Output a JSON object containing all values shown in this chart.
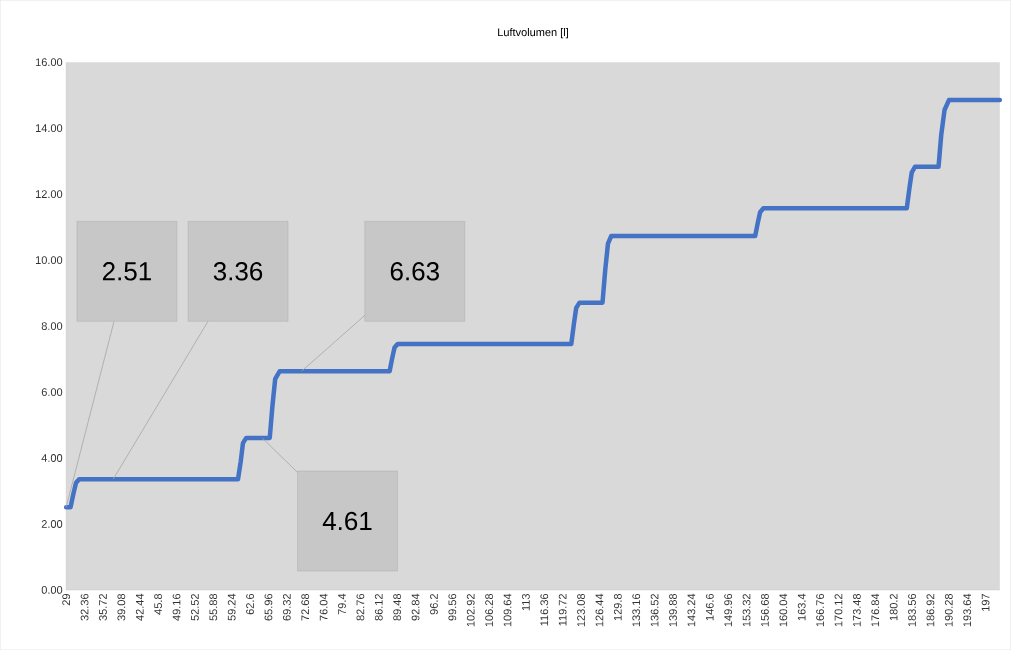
{
  "chart_data": {
    "type": "line",
    "title": "Luftvolumen [l]",
    "x": [
      29,
      29.8,
      30.3,
      30.8,
      31.4,
      60.4,
      60.9,
      61.3,
      61.9,
      66.2,
      66.7,
      67.2,
      68.0,
      88.1,
      88.6,
      89.0,
      89.6,
      121.3,
      121.8,
      122.2,
      122.8,
      127.0,
      127.5,
      128.0,
      128.6,
      154.9,
      155.4,
      155.8,
      156.4,
      182.6,
      183.1,
      183.5,
      184.1,
      188.4,
      188.9,
      189.5,
      190.3,
      199.6
    ],
    "values": [
      2.51,
      2.51,
      2.9,
      3.25,
      3.36,
      3.36,
      3.9,
      4.45,
      4.61,
      4.61,
      5.6,
      6.4,
      6.63,
      6.63,
      7.05,
      7.35,
      7.46,
      7.46,
      8.1,
      8.55,
      8.71,
      8.71,
      9.7,
      10.5,
      10.73,
      10.73,
      11.15,
      11.45,
      11.57,
      11.57,
      12.2,
      12.65,
      12.83,
      12.83,
      13.8,
      14.55,
      14.85,
      14.85
    ],
    "color": "#4472c4",
    "marker": "none",
    "line_style": "solid",
    "grid": false,
    "xlim": [
      29,
      199.6
    ],
    "xticks": [
      29,
      32.36,
      35.72,
      39.08,
      42.44,
      45.8,
      49.16,
      52.52,
      55.88,
      59.24,
      62.6,
      65.96,
      69.32,
      72.68,
      76.04,
      79.4,
      82.76,
      86.12,
      89.48,
      92.84,
      96.2,
      99.56,
      102.92,
      106.28,
      109.64,
      113,
      116.36,
      119.72,
      123.08,
      126.44,
      129.8,
      133.16,
      136.52,
      139.88,
      143.24,
      146.6,
      149.96,
      153.32,
      156.68,
      160.04,
      163.4,
      166.76,
      170.12,
      173.48,
      176.84,
      180.2,
      183.56,
      186.92,
      190.28,
      193.64,
      197
    ],
    "ylim": [
      0,
      16
    ],
    "yticks": [
      {
        "value": 0,
        "label": "0.00"
      },
      {
        "value": 2,
        "label": "2.00"
      },
      {
        "value": 4,
        "label": "4.00"
      },
      {
        "value": 6,
        "label": "6.00"
      },
      {
        "value": 8,
        "label": "8.00"
      },
      {
        "value": 10,
        "label": "10.00"
      },
      {
        "value": 12,
        "label": "12.00"
      },
      {
        "value": 14,
        "label": "14.00"
      },
      {
        "value": 16,
        "label": "16.00"
      }
    ],
    "annotations": [
      {
        "text": "2.51",
        "x": 29,
        "y": 2.51
      },
      {
        "text": "3.36",
        "x": 37.6,
        "y": 3.36
      },
      {
        "text": "6.63",
        "x": 72,
        "y": 6.63
      },
      {
        "text": "4.61",
        "x": 64.8,
        "y": 4.61
      }
    ]
  }
}
